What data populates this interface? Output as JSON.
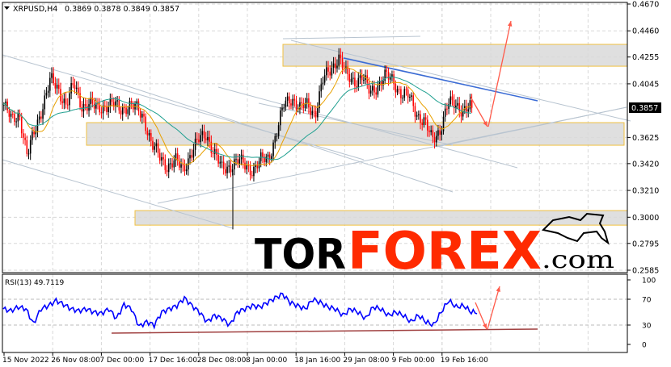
{
  "header": {
    "symbol_line": "XRPUSD,H4",
    "ohlc": "0.3869 0.3878 0.3849 0.3857"
  },
  "rsi_header": "RSI(13) 49.7119",
  "current_price": "0.3857",
  "logo": {
    "part1": "TOR",
    "part2": "FOREX",
    "part3": ".com"
  },
  "colors": {
    "bull_candle": "#000000",
    "bear_candle": "#ff0000",
    "ma_fast": "#e8a000",
    "ma_slow": "#20a090",
    "rsi": "#0000ff",
    "zone_fill": "#d9d9d9",
    "zone_border": "#f0c040",
    "arrow": "#ff5a4a",
    "trend_blue": "#3a6bd6",
    "logo_red": "#ff2a00"
  },
  "chart_data": [
    {
      "type": "candlestick",
      "title": "XRPUSD,H4",
      "y_ticks": [
        "0.4670",
        "0.4460",
        "0.4255",
        "0.4045",
        "0.3625",
        "0.3420",
        "0.3210",
        "0.3000",
        "0.2795",
        "0.2585"
      ],
      "ylim": [
        0.2585,
        0.467
      ],
      "x_ticks": [
        "15 Nov 2022",
        "26 Nov 08:00",
        "7 Dec 00:00",
        "17 Dec 16:00",
        "28 Dec 08:00",
        "8 Jan 00:00",
        "18 Jan 16:00",
        "29 Jan 08:00",
        "9 Feb 00:00",
        "19 Feb 16:00"
      ],
      "close_path": [
        0.388,
        0.3754,
        0.3817,
        0.3469,
        0.369,
        0.388,
        0.407,
        0.4006,
        0.388,
        0.4038,
        0.388,
        0.388,
        0.3848,
        0.388,
        0.388,
        0.3848,
        0.388,
        0.3848,
        0.3785,
        0.3564,
        0.3469,
        0.3406,
        0.3438,
        0.3374,
        0.3501,
        0.3596,
        0.3659,
        0.3501,
        0.3374,
        0.3406,
        0.3438,
        0.3406,
        0.3374,
        0.3438,
        0.3469,
        0.3659,
        0.388,
        0.3943,
        0.3848,
        0.388,
        0.3817,
        0.407,
        0.4164,
        0.4259,
        0.4101,
        0.407,
        0.4101,
        0.3975,
        0.4038,
        0.4101,
        0.407,
        0.3975,
        0.3943,
        0.3817,
        0.3754,
        0.3596,
        0.369,
        0.388,
        0.388,
        0.3848,
        0.3857
      ],
      "grid": true,
      "zones": [
        [
          0.4183,
          0.4354
        ],
        [
          0.3564,
          0.3741
        ],
        [
          0.2938,
          0.3052
        ]
      ]
    },
    {
      "type": "line",
      "title": "RSI(13) 49.7119",
      "ylim": [
        0,
        100
      ],
      "y_ticks": [
        "100",
        "70",
        "30",
        "0"
      ],
      "values": [
        55,
        52,
        58,
        55,
        32,
        55,
        60,
        68,
        62,
        55,
        52,
        55,
        50,
        48,
        55,
        40,
        62,
        55,
        28,
        35,
        30,
        50,
        55,
        60,
        72,
        60,
        50,
        35,
        45,
        40,
        30,
        50,
        55,
        60,
        58,
        65,
        72,
        78,
        65,
        60,
        55,
        70,
        65,
        58,
        55,
        45,
        55,
        50,
        40,
        58,
        55,
        45,
        50,
        45,
        35,
        45,
        35,
        30,
        50,
        68,
        58,
        60,
        50
      ]
    }
  ]
}
